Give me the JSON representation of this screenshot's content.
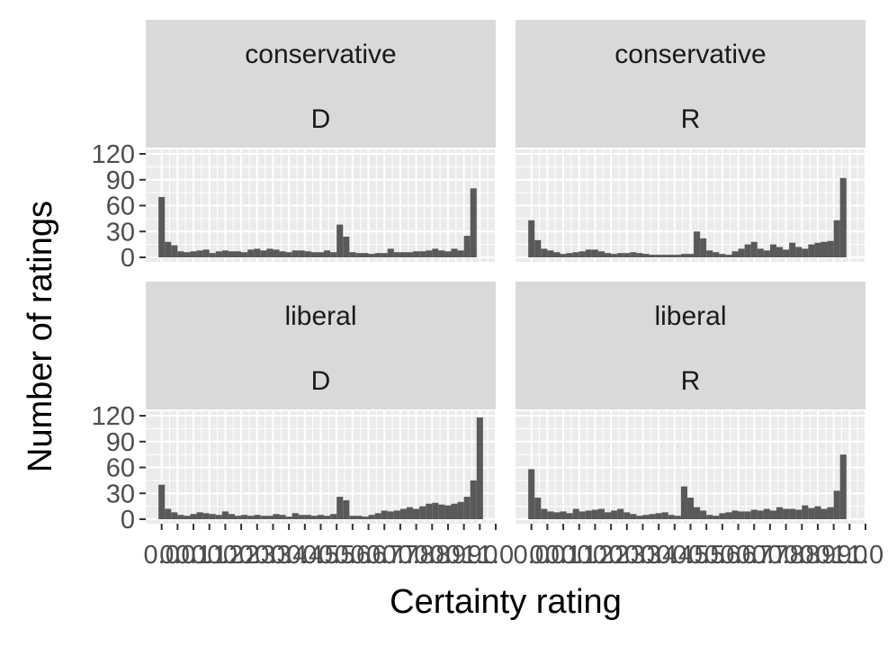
{
  "chart_data": {
    "type": "bar",
    "xlabel": "Certainty rating",
    "ylabel": "Number of ratings",
    "xlim": [
      -0.05,
      1.05
    ],
    "ylim": [
      0,
      120
    ],
    "x_ticks": [
      "0.0",
      "0.0",
      "0.1",
      "0.1",
      "0.2",
      "0.2",
      "0.3",
      "0.3",
      "0.4",
      "0.4",
      "0.5",
      "0.5",
      "0.6",
      "0.6",
      "0.7",
      "0.7",
      "0.8",
      "0.8",
      "0.9",
      "0.9",
      "1.0",
      "1.0"
    ],
    "x_tick_values": [
      0.0,
      0.05,
      0.1,
      0.15,
      0.2,
      0.25,
      0.3,
      0.35,
      0.4,
      0.45,
      0.5,
      0.55,
      0.6,
      0.65,
      0.7,
      0.75,
      0.8,
      0.85,
      0.9,
      0.95,
      1.0,
      1.05
    ],
    "y_ticks": [
      0,
      30,
      60,
      90,
      120
    ],
    "bin_width": 0.02,
    "bin_centers": [
      0.0,
      0.02,
      0.04,
      0.06,
      0.08,
      0.1,
      0.12,
      0.14,
      0.16,
      0.18,
      0.2,
      0.22,
      0.24,
      0.26,
      0.28,
      0.3,
      0.32,
      0.34,
      0.36,
      0.38,
      0.4,
      0.42,
      0.44,
      0.46,
      0.48,
      0.5,
      0.52,
      0.54,
      0.56,
      0.58,
      0.6,
      0.62,
      0.64,
      0.66,
      0.68,
      0.7,
      0.72,
      0.74,
      0.76,
      0.78,
      0.8,
      0.82,
      0.84,
      0.86,
      0.88,
      0.9,
      0.92,
      0.94,
      0.96,
      0.98,
      1.0
    ],
    "bar_color": "#595959",
    "panel_background": "#ebebeb",
    "strip_background": "#d9d9d9",
    "grid": true,
    "panels": [
      {
        "row": 0,
        "col": 0,
        "strip": [
          "conservative",
          "D"
        ],
        "values": [
          70,
          18,
          14,
          7,
          6,
          7,
          8,
          9,
          5,
          7,
          8,
          7,
          7,
          6,
          9,
          10,
          8,
          10,
          9,
          7,
          6,
          8,
          8,
          7,
          6,
          6,
          8,
          6,
          38,
          24,
          6,
          5,
          5,
          4,
          5,
          5,
          10,
          6,
          6,
          6,
          7,
          7,
          8,
          10,
          8,
          7,
          10,
          8,
          25,
          80,
          0
        ]
      },
      {
        "row": 0,
        "col": 1,
        "strip": [
          "conservative",
          "R"
        ],
        "values": [
          43,
          20,
          10,
          8,
          6,
          4,
          5,
          6,
          7,
          9,
          9,
          7,
          5,
          4,
          5,
          5,
          6,
          5,
          4,
          3,
          3,
          3,
          3,
          3,
          4,
          4,
          30,
          22,
          8,
          6,
          4,
          3,
          7,
          10,
          15,
          18,
          10,
          8,
          15,
          12,
          9,
          17,
          12,
          10,
          15,
          17,
          18,
          19,
          43,
          92,
          0
        ]
      },
      {
        "row": 1,
        "col": 0,
        "strip": [
          "liberal",
          "D"
        ],
        "values": [
          40,
          12,
          8,
          5,
          4,
          6,
          8,
          7,
          6,
          5,
          9,
          6,
          4,
          5,
          4,
          5,
          4,
          4,
          6,
          5,
          3,
          7,
          5,
          5,
          4,
          5,
          4,
          6,
          26,
          22,
          4,
          4,
          3,
          5,
          7,
          10,
          9,
          10,
          12,
          14,
          12,
          15,
          18,
          19,
          17,
          16,
          18,
          20,
          26,
          45,
          118
        ]
      },
      {
        "row": 1,
        "col": 1,
        "strip": [
          "liberal",
          "R"
        ],
        "values": [
          58,
          25,
          12,
          9,
          8,
          9,
          7,
          12,
          9,
          10,
          11,
          12,
          8,
          10,
          12,
          8,
          6,
          4,
          5,
          6,
          7,
          8,
          5,
          4,
          38,
          25,
          14,
          10,
          5,
          4,
          7,
          8,
          10,
          9,
          9,
          11,
          10,
          12,
          10,
          14,
          12,
          12,
          11,
          16,
          13,
          15,
          12,
          14,
          33,
          75,
          0
        ]
      }
    ]
  }
}
